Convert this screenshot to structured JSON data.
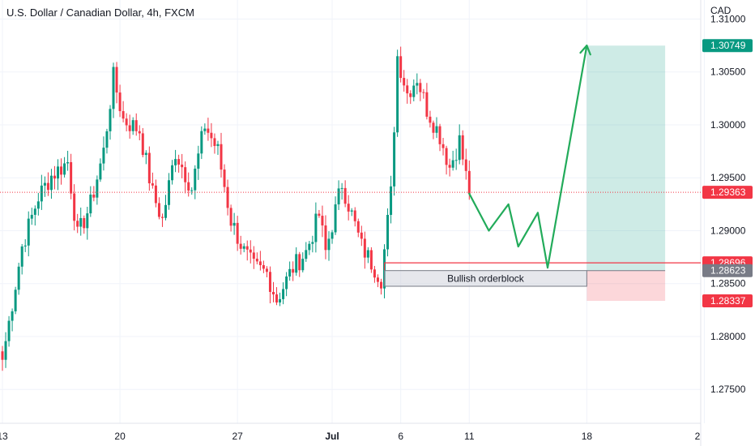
{
  "header": {
    "title": "U.S. Dollar / Canadian Dollar, 4h, FXCM",
    "currency": "CAD"
  },
  "chart_data": {
    "type": "candlestick",
    "title": "U.S. Dollar / Canadian Dollar, 4h, FXCM",
    "ylabel": "CAD",
    "ylim": [
      1.2718,
      1.3118
    ],
    "y_ticks": [
      "1.31000",
      "1.30500",
      "1.30000",
      "1.29500",
      "1.29000",
      "1.28500",
      "1.28000",
      "1.27500"
    ],
    "y_tick_values": [
      1.31,
      1.305,
      1.3,
      1.295,
      1.29,
      1.285,
      1.28,
      1.275
    ],
    "x_ticks": [
      "13",
      "20",
      "27",
      "Jul",
      "6",
      "11",
      "18",
      "2"
    ],
    "x_tick_index": [
      0,
      36,
      72,
      101,
      122,
      143,
      179,
      215
    ],
    "grid": true,
    "price_tags": [
      {
        "label": "1.30749",
        "value": 1.30749,
        "color": "#089981"
      },
      {
        "label": "1.29363",
        "value": 1.29363,
        "color": "#f23645"
      },
      {
        "label": "1.28696",
        "value": 1.28696,
        "color": "#f23645"
      },
      {
        "label": "1.28623",
        "value": 1.28623,
        "color": "#787b86"
      },
      {
        "label": "1.28337",
        "value": 1.28337,
        "color": "#f23645"
      }
    ],
    "current_price": 1.29363,
    "annotations": {
      "orderblock_label": "Bullish orderblock",
      "orderblock_top": 1.28623,
      "orderblock_bottom": 1.28475,
      "orderblock_start_index": 117,
      "orderblock_end_index": 179,
      "resistance_line": 1.28696,
      "resistance_start_index": 117,
      "position_entry": 1.28623,
      "position_target": 1.30749,
      "position_stop": 1.28337,
      "position_start_index": 179,
      "position_end_index": 203,
      "projected_path": [
        [
          143,
          1.2935
        ],
        [
          149,
          1.29
        ],
        [
          155,
          1.2925
        ],
        [
          158,
          1.2885
        ],
        [
          164,
          1.2917
        ],
        [
          167,
          1.2865
        ],
        [
          179,
          1.3075
        ]
      ]
    },
    "candle_keypoints": [
      [
        0,
        1.2778
      ],
      [
        6,
        1.2885
      ],
      [
        11,
        1.2932
      ],
      [
        15,
        1.2952
      ],
      [
        20,
        1.2965
      ],
      [
        23,
        1.2895
      ],
      [
        27,
        1.2925
      ],
      [
        31,
        1.2975
      ],
      [
        34,
        1.3045
      ],
      [
        37,
        1.3005
      ],
      [
        42,
        1.2995
      ],
      [
        46,
        1.2935
      ],
      [
        49,
        1.291
      ],
      [
        53,
        1.2975
      ],
      [
        58,
        1.294
      ],
      [
        62,
        1.3
      ],
      [
        66,
        1.2975
      ],
      [
        70,
        1.291
      ],
      [
        74,
        1.288
      ],
      [
        77,
        1.2865
      ],
      [
        81,
        1.286
      ],
      [
        84,
        1.2835
      ],
      [
        89,
        1.2865
      ],
      [
        93,
        1.288
      ],
      [
        97,
        1.2915
      ],
      [
        99,
        1.288
      ],
      [
        104,
        1.2945
      ],
      [
        107,
        1.2915
      ],
      [
        110,
        1.2885
      ],
      [
        114,
        1.2865
      ],
      [
        116,
        1.2855
      ],
      [
        119,
        1.2935
      ],
      [
        121,
        1.3065
      ],
      [
        124,
        1.303
      ],
      [
        127,
        1.3045
      ],
      [
        130,
        1.3015
      ],
      [
        134,
        1.299
      ],
      [
        137,
        1.296
      ],
      [
        140,
        1.2985
      ],
      [
        143,
        1.2935
      ]
    ]
  }
}
